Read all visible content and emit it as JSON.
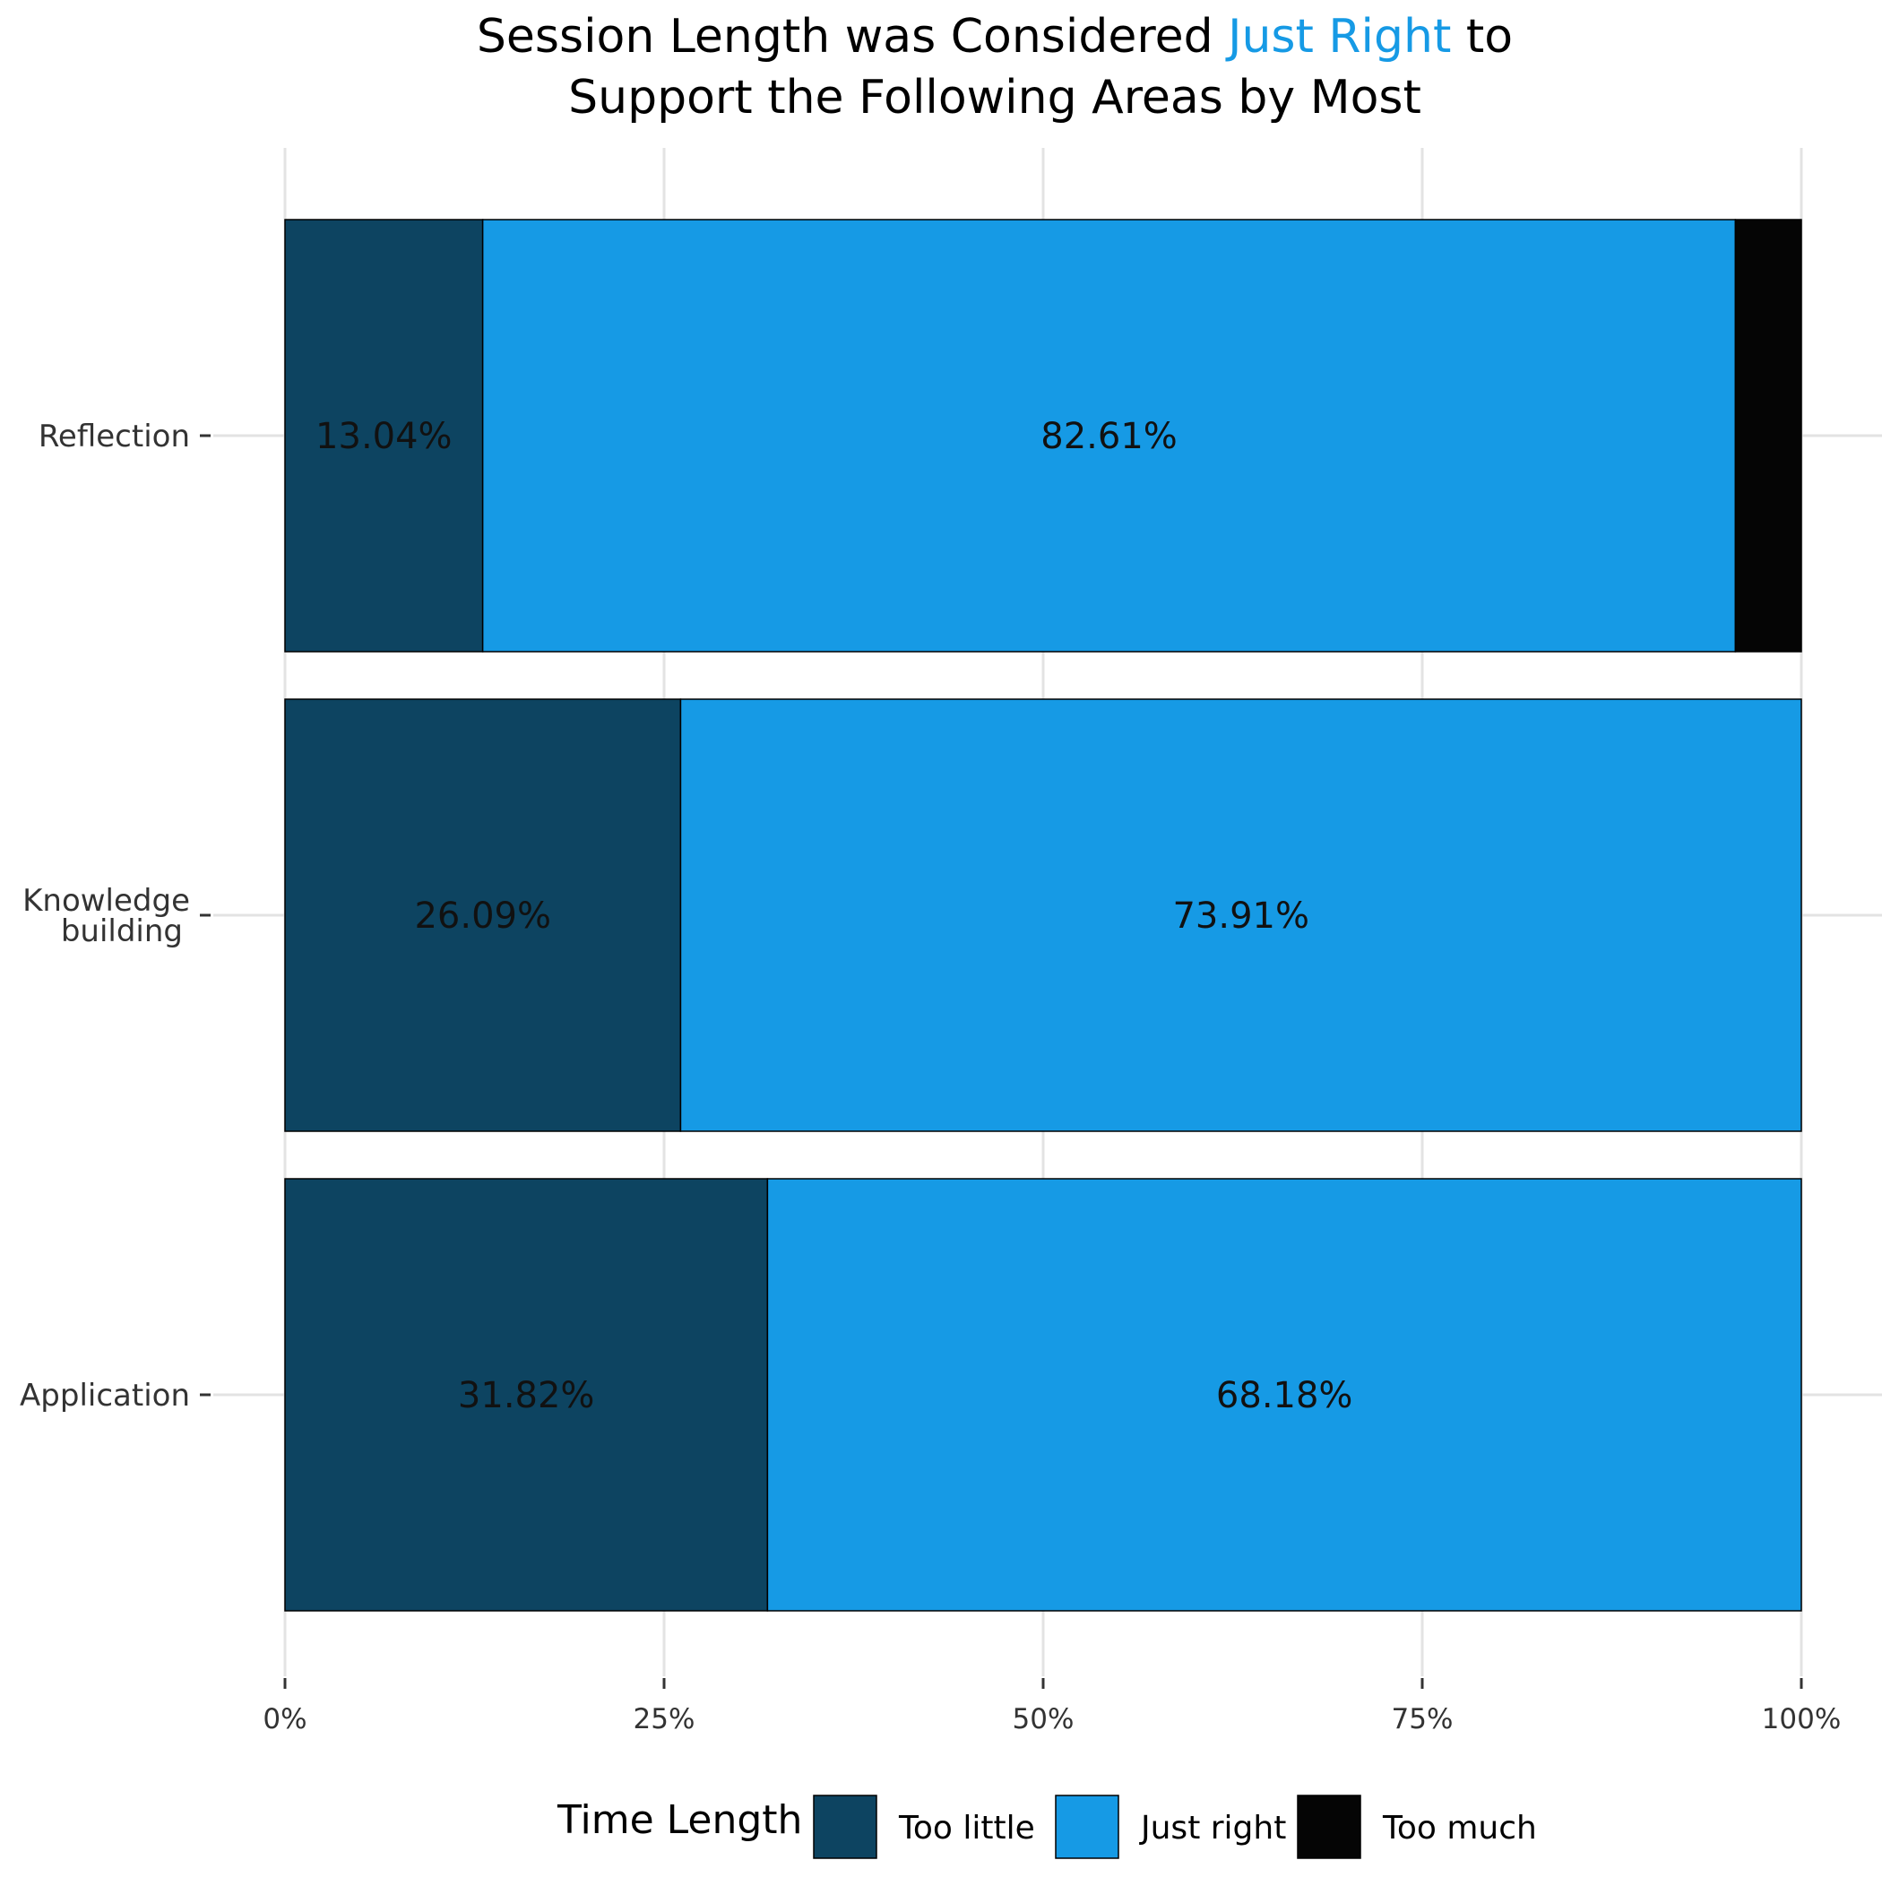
{
  "chart_data": {
    "type": "bar",
    "orientation": "horizontal",
    "stacked": true,
    "title": {
      "line1_prefix": "Session Length was Considered ",
      "line1_highlight": "Just Right",
      "line1_suffix": " to",
      "line2": "Support the Following Areas by Most"
    },
    "categories": [
      "Reflection",
      "Knowledge\nbuilding",
      "Application"
    ],
    "series": [
      {
        "name": "Too little",
        "color": "#0d4461",
        "values": [
          13.04,
          26.09,
          31.82
        ],
        "labels": [
          "13.04%",
          "26.09%",
          "31.82%"
        ]
      },
      {
        "name": "Just right",
        "color": "#169ae5",
        "values": [
          82.61,
          73.91,
          68.18
        ],
        "labels": [
          "82.61%",
          "73.91%",
          "68.18%"
        ]
      },
      {
        "name": "Too much",
        "color": "#050505",
        "values": [
          4.35,
          0,
          0
        ],
        "labels": [
          "",
          "",
          ""
        ]
      }
    ],
    "xlim": [
      0,
      100
    ],
    "x_ticks": [
      0,
      25,
      50,
      75,
      100
    ],
    "x_tick_labels": [
      "0%",
      "25%",
      "50%",
      "75%",
      "100%"
    ],
    "grid": true,
    "legend": {
      "title": "Time Length",
      "position": "bottom"
    },
    "highlight_color": "#169ae5"
  }
}
